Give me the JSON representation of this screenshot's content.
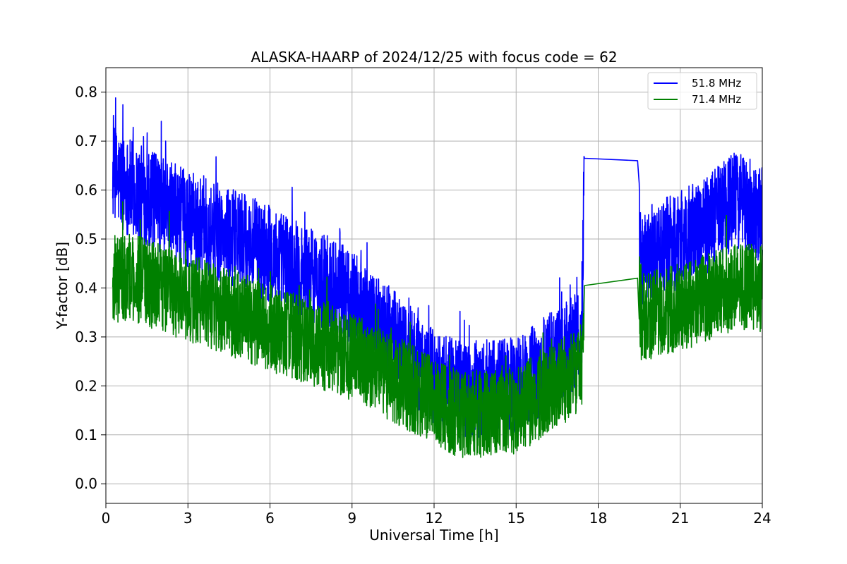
{
  "chart_data": {
    "type": "line",
    "title": "ALASKA-HAARP of 2024/12/25 with focus code = 62",
    "xlabel": "Universal Time [h]",
    "ylabel": "Y-factor [dB]",
    "xlim": [
      0,
      24
    ],
    "ylim": [
      -0.04,
      0.85
    ],
    "xticks": [
      0,
      3,
      6,
      9,
      12,
      15,
      18,
      21,
      24
    ],
    "yticks": [
      0.0,
      0.1,
      0.2,
      0.3,
      0.4,
      0.5,
      0.6,
      0.7,
      0.8
    ],
    "xtick_labels": [
      "0",
      "3",
      "6",
      "9",
      "12",
      "15",
      "18",
      "21",
      "24"
    ],
    "ytick_labels": [
      "0.0",
      "0.1",
      "0.2",
      "0.3",
      "0.4",
      "0.5",
      "0.6",
      "0.7",
      "0.8"
    ],
    "grid": true,
    "legend_position": "top-right",
    "series": [
      {
        "name": "51.8 MHz",
        "color": "#0000ff",
        "noise_amplitude": 0.1,
        "envelope": [
          [
            0.25,
            0.63
          ],
          [
            1,
            0.6
          ],
          [
            3,
            0.54
          ],
          [
            6,
            0.47
          ],
          [
            9,
            0.38
          ],
          [
            11,
            0.27
          ],
          [
            12,
            0.22
          ],
          [
            13,
            0.19
          ],
          [
            15,
            0.2
          ],
          [
            16.5,
            0.26
          ],
          [
            17.4,
            0.3
          ],
          [
            17.5,
            0.665
          ],
          [
            19.45,
            0.66
          ],
          [
            19.55,
            0.46
          ],
          [
            21,
            0.5
          ],
          [
            22,
            0.53
          ],
          [
            23,
            0.58
          ],
          [
            24,
            0.55
          ]
        ]
      },
      {
        "name": "71.4 MHz",
        "color": "#008000",
        "noise_amplitude": 0.09,
        "envelope": [
          [
            0.25,
            0.42
          ],
          [
            1,
            0.42
          ],
          [
            3,
            0.38
          ],
          [
            6,
            0.32
          ],
          [
            9,
            0.26
          ],
          [
            11,
            0.2
          ],
          [
            12,
            0.17
          ],
          [
            13,
            0.14
          ],
          [
            15,
            0.15
          ],
          [
            16.5,
            0.2
          ],
          [
            17.4,
            0.24
          ],
          [
            17.5,
            0.405
          ],
          [
            19.45,
            0.42
          ],
          [
            19.55,
            0.34
          ],
          [
            21,
            0.36
          ],
          [
            22,
            0.38
          ],
          [
            23,
            0.4
          ],
          [
            24,
            0.4
          ]
        ]
      }
    ],
    "data_gap": [
      17.5,
      19.5
    ]
  }
}
